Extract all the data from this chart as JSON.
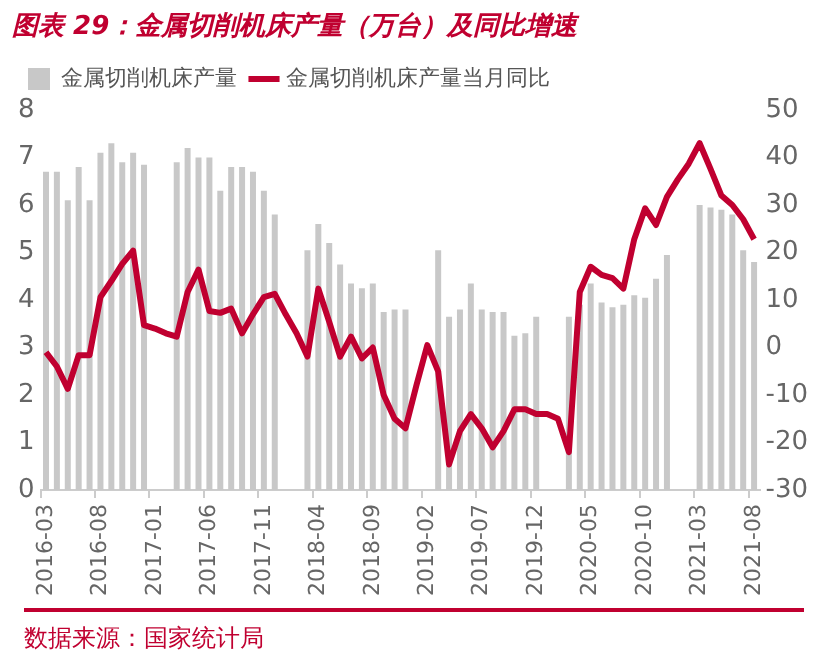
{
  "chart_data": {
    "type": "bar",
    "title": "图表 29：金属切削机床产量（万台）及同比增速",
    "categories": [
      "2016-03",
      null,
      null,
      null,
      null,
      "2016-08",
      null,
      null,
      null,
      null,
      "2017-01",
      null,
      null,
      null,
      null,
      "2017-06",
      null,
      null,
      null,
      null,
      "2017-11",
      null,
      null,
      null,
      null,
      "2018-04",
      null,
      null,
      null,
      null,
      "2018-09",
      null,
      null,
      null,
      null,
      "2019-02",
      null,
      null,
      null,
      null,
      "2019-07",
      null,
      null,
      null,
      null,
      "2019-12",
      null,
      null,
      null,
      null,
      "2020-05",
      null,
      null,
      null,
      null,
      "2020-10",
      null,
      null,
      null,
      null,
      "2021-03",
      null,
      null,
      null,
      null,
      "2021-08"
    ],
    "series": [
      {
        "name": "金属切削机床产量",
        "color": "#c8c8c8",
        "values": [
          6.7,
          6.7,
          6.1,
          6.8,
          6.1,
          7.1,
          7.3,
          6.9,
          7.1,
          6.85,
          null,
          null,
          6.9,
          7.2,
          7.0,
          7.0,
          6.3,
          6.8,
          6.8,
          6.7,
          6.3,
          5.8,
          null,
          null,
          5.05,
          5.6,
          5.2,
          4.75,
          4.35,
          4.25,
          4.35,
          3.75,
          3.8,
          3.8,
          null,
          null,
          5.05,
          3.65,
          3.8,
          4.35,
          3.8,
          3.75,
          3.75,
          3.25,
          3.3,
          3.65,
          null,
          null,
          3.65,
          3.9,
          4.35,
          3.95,
          3.85,
          3.9,
          4.1,
          4.05,
          4.45,
          4.95,
          null,
          null,
          6.0,
          5.95,
          5.9,
          5.8,
          5.05,
          4.8
        ]
      },
      {
        "name": "金属切削机床产量当月同比",
        "type": "line",
        "axis": "y2",
        "color": "#c00030",
        "values": [
          -1,
          -4,
          -8.7,
          -1.6,
          -1.6,
          10.6,
          14,
          17.6,
          20.4,
          4.7,
          4,
          3,
          2.3,
          11.7,
          16.4,
          7.7,
          7.3,
          8.2,
          3,
          7,
          10.6,
          11.3,
          7,
          3,
          -1.9,
          12.4,
          5.4,
          -1.9,
          2.3,
          -2.3,
          0,
          -10,
          -15,
          -17,
          -8,
          0.5,
          -5,
          -24.6,
          -17.6,
          -14,
          -17,
          -21,
          -17.6,
          -13,
          -13,
          -14,
          -14,
          -15,
          -22,
          11.7,
          17,
          15.3,
          14.6,
          12.4,
          22.8,
          29.3,
          25.8,
          31.7,
          35.4,
          38.7,
          43,
          37.6,
          32,
          30,
          27,
          22.8
        ]
      }
    ],
    "ylim": [
      0,
      8
    ],
    "yticks": [
      0,
      1,
      2,
      3,
      4,
      5,
      6,
      7,
      8
    ],
    "y2lim": [
      -30,
      50
    ],
    "y2ticks": [
      -30,
      -20,
      -10,
      0,
      10,
      20,
      30,
      40,
      50
    ],
    "legend": "top",
    "grid": false,
    "marker": "none",
    "line_style": "solid",
    "annotations": [
      "数据来源：国家统计局"
    ]
  }
}
